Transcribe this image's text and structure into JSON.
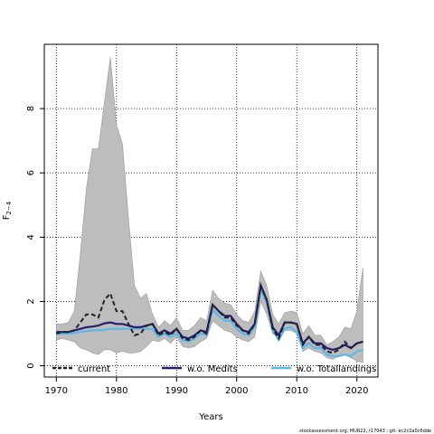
{
  "chart_data": {
    "type": "line",
    "xlabel": "Years",
    "ylabel_main": "F",
    "ylabel_sub": "2−4",
    "xlim": [
      1968,
      2023.5
    ],
    "ylim": [
      -0.35,
      10.0
    ],
    "xticks": [
      1970,
      1980,
      1990,
      2000,
      2010,
      2020
    ],
    "yticks": [
      0,
      2,
      4,
      6,
      8
    ],
    "grid": true,
    "legend_position": "bottom",
    "footnote": "stockassessment.org, MUR22, r17043 ; git: ec2c2a0c6dde",
    "x": [
      1970,
      1971,
      1972,
      1973,
      1974,
      1975,
      1976,
      1977,
      1978,
      1979,
      1980,
      1981,
      1982,
      1983,
      1984,
      1985,
      1986,
      1987,
      1988,
      1989,
      1990,
      1991,
      1992,
      1993,
      1994,
      1995,
      1996,
      1997,
      1998,
      1999,
      2000,
      2001,
      2002,
      2003,
      2004,
      2005,
      2006,
      2007,
      2008,
      2009,
      2010,
      2011,
      2012,
      2013,
      2014,
      2015,
      2016,
      2017,
      2018,
      2019,
      2020,
      2021
    ],
    "band": {
      "upper": [
        1.3,
        1.3,
        1.35,
        1.7,
        3.5,
        5.5,
        6.75,
        6.75,
        8.2,
        9.6,
        7.5,
        6.9,
        4.6,
        2.5,
        2.1,
        2.25,
        1.6,
        1.2,
        1.4,
        1.25,
        1.5,
        1.1,
        1.1,
        1.25,
        1.5,
        1.4,
        2.35,
        2.1,
        1.95,
        1.9,
        1.6,
        1.4,
        1.35,
        1.7,
        2.95,
        2.5,
        1.6,
        1.3,
        1.65,
        1.7,
        1.65,
        1.0,
        1.25,
        0.95,
        0.95,
        0.65,
        0.75,
        0.9,
        1.2,
        1.15,
        1.7,
        3.05
      ],
      "lower": [
        0.8,
        0.85,
        0.8,
        0.75,
        0.55,
        0.5,
        0.4,
        0.35,
        0.5,
        0.5,
        0.4,
        0.45,
        0.4,
        0.4,
        0.45,
        0.6,
        0.8,
        0.75,
        0.85,
        0.7,
        0.9,
        0.6,
        0.55,
        0.6,
        0.75,
        0.85,
        1.4,
        1.25,
        1.1,
        1.05,
        0.9,
        0.8,
        0.75,
        0.9,
        2.0,
        1.6,
        1.0,
        0.85,
        1.1,
        1.1,
        1.0,
        0.45,
        0.55,
        0.45,
        0.4,
        0.25,
        0.2,
        0.3,
        0.35,
        0.25,
        0.15,
        0.1
      ]
    },
    "series": [
      {
        "name": "current",
        "color": "#222222",
        "dash": true,
        "values": [
          1.0,
          1.05,
          1.05,
          1.1,
          1.35,
          1.6,
          1.6,
          1.5,
          2.05,
          2.25,
          1.7,
          1.7,
          1.3,
          0.95,
          1.0,
          1.25,
          1.3,
          0.95,
          1.05,
          0.95,
          1.15,
          0.85,
          0.8,
          0.9,
          1.1,
          1.0,
          1.9,
          1.7,
          1.5,
          1.5,
          1.25,
          1.1,
          1.0,
          1.3,
          2.5,
          2.05,
          1.15,
          0.85,
          1.35,
          1.35,
          1.3,
          0.65,
          0.9,
          0.65,
          0.65,
          0.45,
          0.4,
          0.5,
          0.75,
          0.55,
          0.7,
          0.75
        ]
      },
      {
        "name": "w.o. Medits",
        "color": "#2a1b6e",
        "dash": false,
        "values": [
          1.05,
          1.05,
          1.05,
          1.1,
          1.15,
          1.2,
          1.22,
          1.25,
          1.32,
          1.35,
          1.3,
          1.3,
          1.25,
          1.2,
          1.2,
          1.25,
          1.3,
          1.0,
          1.1,
          1.0,
          1.15,
          0.9,
          0.85,
          0.95,
          1.1,
          1.05,
          1.9,
          1.7,
          1.55,
          1.55,
          1.3,
          1.1,
          1.05,
          1.3,
          2.5,
          2.05,
          1.2,
          0.95,
          1.35,
          1.35,
          1.3,
          0.7,
          0.9,
          0.7,
          0.7,
          0.55,
          0.5,
          0.55,
          0.65,
          0.55,
          0.7,
          0.75
        ]
      },
      {
        "name": "w.o. Totallandings",
        "color": "#5bb8e8",
        "dash": false,
        "values": [
          0.98,
          1.0,
          1.0,
          1.02,
          1.05,
          1.08,
          1.1,
          1.1,
          1.12,
          1.15,
          1.15,
          1.15,
          1.15,
          1.15,
          1.15,
          1.15,
          1.15,
          0.9,
          1.0,
          0.9,
          1.0,
          0.8,
          0.75,
          0.85,
          1.0,
          0.95,
          1.75,
          1.55,
          1.4,
          1.4,
          1.15,
          1.0,
          0.95,
          1.2,
          2.35,
          1.95,
          1.1,
          0.8,
          1.15,
          1.2,
          1.05,
          0.55,
          0.7,
          0.55,
          0.55,
          0.35,
          0.3,
          0.3,
          0.35,
          0.3,
          0.45,
          0.5
        ]
      }
    ]
  }
}
